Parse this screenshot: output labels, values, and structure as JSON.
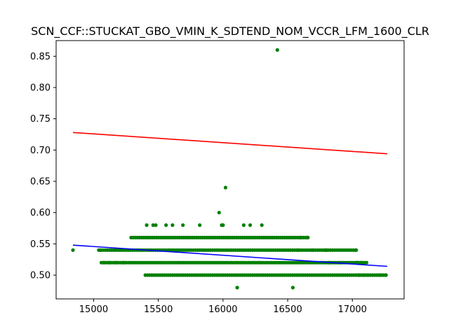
{
  "chart_data": {
    "type": "scatter",
    "title": "SCN_CCF::STUCKAT_GBO_VMIN_K_SDTEND_NOM_VCCR_LFM_1600_CLR",
    "xlabel": "",
    "ylabel": "",
    "xlim": [
      14710,
      17400
    ],
    "ylim": [
      0.462,
      0.875
    ],
    "grid": false,
    "legend": "none",
    "x_ticks": [
      15000,
      15500,
      16000,
      16500,
      17000
    ],
    "x_tick_labels": [
      "15000",
      "15500",
      "16000",
      "16500",
      "17000"
    ],
    "y_ticks": [
      0.5,
      0.55,
      0.6,
      0.65,
      0.7,
      0.75,
      0.8,
      0.85
    ],
    "y_tick_labels": [
      "0.50",
      "0.55",
      "0.60",
      "0.65",
      "0.70",
      "0.75",
      "0.80",
      "0.85"
    ],
    "colors": {
      "points": "#008000",
      "upper_line": "#ff0000",
      "fit_line": "#0000ff"
    },
    "bands": [
      {
        "y": 0.5,
        "x_min": 15400,
        "x_max": 17270
      },
      {
        "y": 0.52,
        "x_min": 15060,
        "x_max": 17120
      },
      {
        "y": 0.54,
        "x_min": 15040,
        "x_max": 17030
      },
      {
        "y": 0.56,
        "x_min": 15290,
        "x_max": 16660
      }
    ],
    "points": [
      {
        "x": 14840,
        "y": 0.54
      },
      {
        "x": 15080,
        "y": 0.52
      },
      {
        "x": 15050,
        "y": 0.54
      },
      {
        "x": 15120,
        "y": 0.52
      },
      {
        "x": 15170,
        "y": 0.52
      },
      {
        "x": 15230,
        "y": 0.52
      },
      {
        "x": 15410,
        "y": 0.58
      },
      {
        "x": 15460,
        "y": 0.58
      },
      {
        "x": 15480,
        "y": 0.58
      },
      {
        "x": 15560,
        "y": 0.58
      },
      {
        "x": 15610,
        "y": 0.58
      },
      {
        "x": 15690,
        "y": 0.58
      },
      {
        "x": 15820,
        "y": 0.58
      },
      {
        "x": 15990,
        "y": 0.58
      },
      {
        "x": 16000,
        "y": 0.58
      },
      {
        "x": 16160,
        "y": 0.58
      },
      {
        "x": 16210,
        "y": 0.58
      },
      {
        "x": 16300,
        "y": 0.58
      },
      {
        "x": 15970,
        "y": 0.6
      },
      {
        "x": 16020,
        "y": 0.64
      },
      {
        "x": 16420,
        "y": 0.86
      },
      {
        "x": 16110,
        "y": 0.48
      },
      {
        "x": 16540,
        "y": 0.48
      },
      {
        "x": 16600,
        "y": 0.56
      },
      {
        "x": 16650,
        "y": 0.56
      },
      {
        "x": 16580,
        "y": 0.54
      },
      {
        "x": 16690,
        "y": 0.54
      },
      {
        "x": 16790,
        "y": 0.54
      },
      {
        "x": 16800,
        "y": 0.54
      },
      {
        "x": 17030,
        "y": 0.54
      },
      {
        "x": 16820,
        "y": 0.52
      },
      {
        "x": 16900,
        "y": 0.52
      },
      {
        "x": 17040,
        "y": 0.52
      },
      {
        "x": 17070,
        "y": 0.52
      },
      {
        "x": 17050,
        "y": 0.5
      },
      {
        "x": 17090,
        "y": 0.5
      },
      {
        "x": 17120,
        "y": 0.5
      },
      {
        "x": 17210,
        "y": 0.5
      },
      {
        "x": 17260,
        "y": 0.5
      }
    ],
    "lines": [
      {
        "color": "red",
        "x": [
          14840,
          17270
        ],
        "y": [
          0.728,
          0.694
        ]
      },
      {
        "color": "blue",
        "x": [
          14840,
          17270
        ],
        "y": [
          0.548,
          0.514
        ]
      }
    ]
  }
}
